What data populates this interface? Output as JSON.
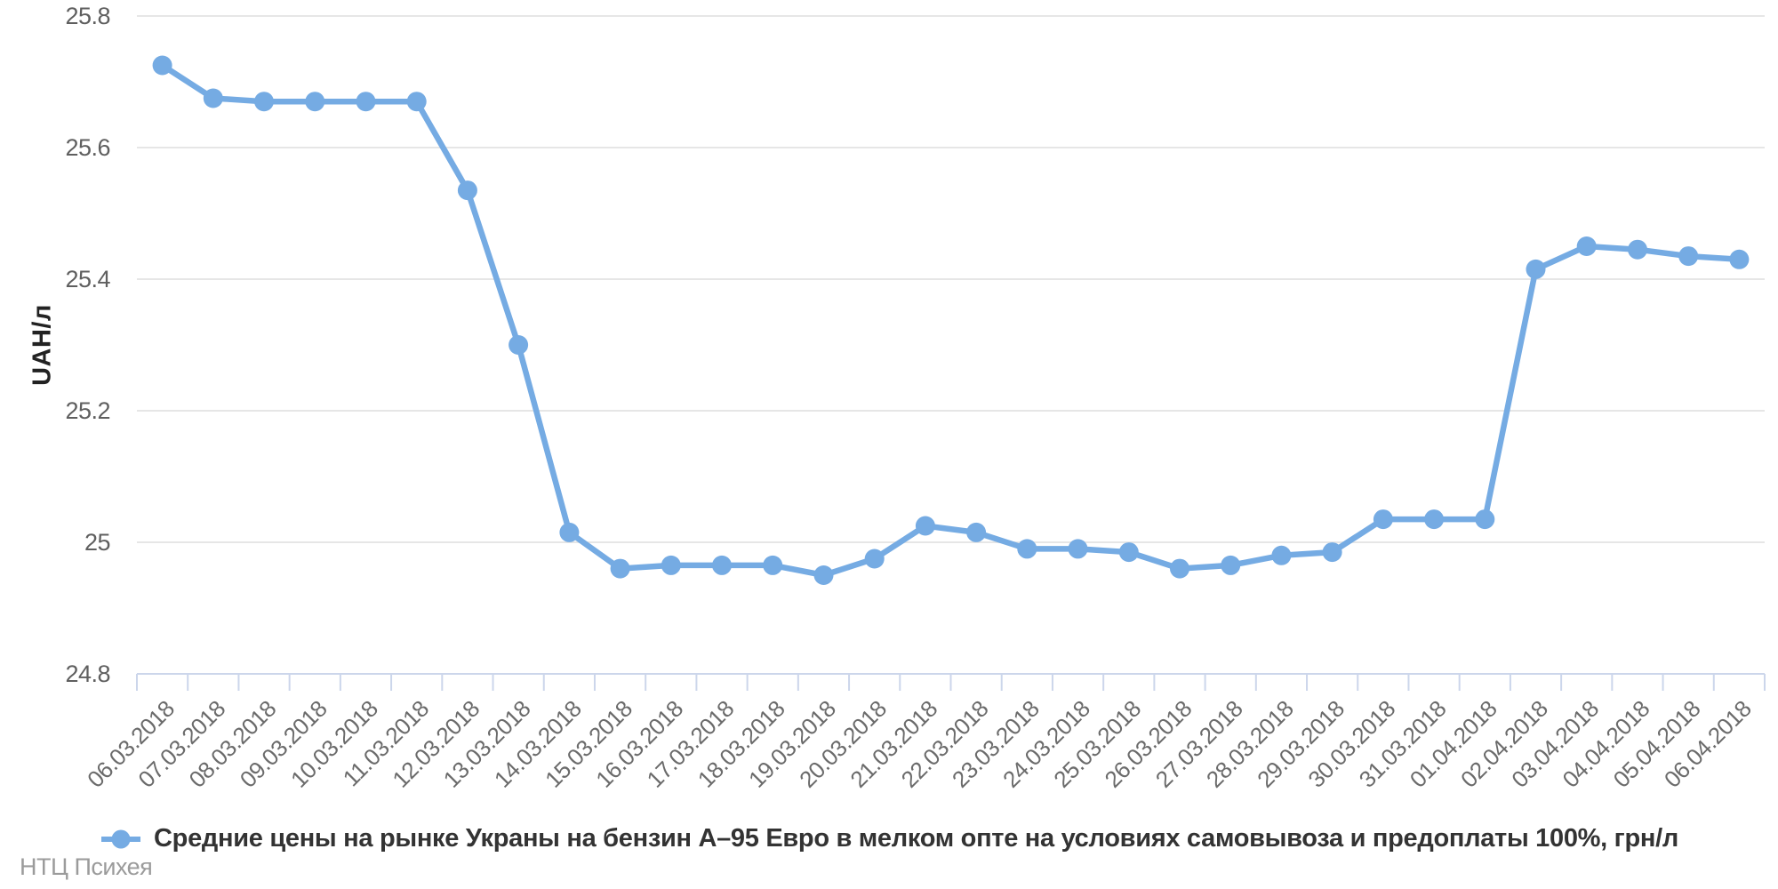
{
  "chart_data": {
    "type": "line",
    "title": "",
    "xlabel": "",
    "ylabel": "UAH/л",
    "ylim": [
      24.8,
      25.8
    ],
    "yticks": [
      25.8,
      25.6,
      25.4,
      25.2,
      25,
      24.8
    ],
    "grid": true,
    "legend_position": "bottom-center",
    "x": [
      "06.03.2018",
      "07.03.2018",
      "08.03.2018",
      "09.03.2018",
      "10.03.2018",
      "11.03.2018",
      "12.03.2018",
      "13.03.2018",
      "14.03.2018",
      "15.03.2018",
      "16.03.2018",
      "17.03.2018",
      "18.03.2018",
      "19.03.2018",
      "20.03.2018",
      "21.03.2018",
      "22.03.2018",
      "23.03.2018",
      "24.03.2018",
      "25.03.2018",
      "26.03.2018",
      "27.03.2018",
      "28.03.2018",
      "29.03.2018",
      "30.03.2018",
      "31.03.2018",
      "01.04.2018",
      "02.04.2018",
      "03.04.2018",
      "04.04.2018",
      "05.04.2018",
      "06.04.2018"
    ],
    "series": [
      {
        "name": "Средние цены на рынке Украны на бензин А–95 Евро в мелком опте на условиях самовывоза и предоплаты 100%, грн/л",
        "color": "#75abe3",
        "values": [
          25.725,
          25.675,
          25.67,
          25.67,
          25.67,
          25.67,
          25.535,
          25.3,
          25.015,
          24.96,
          24.965,
          24.965,
          24.965,
          24.95,
          24.975,
          25.025,
          25.015,
          24.99,
          24.99,
          24.985,
          24.96,
          24.965,
          24.98,
          24.985,
          25.035,
          25.035,
          25.035,
          25.415,
          25.45,
          25.445,
          25.435,
          25.43
        ]
      }
    ]
  },
  "credits": {
    "text": "НТЦ Психея"
  },
  "colors": {
    "series": "#75abe3",
    "gridline": "#e6e6e6",
    "axis_line": "#ccd6eb",
    "ytick_text": "#5f5f5f",
    "xtick_text": "#6b6b6b",
    "legend_text": "#333333",
    "credits_text": "#9b9b9b"
  }
}
